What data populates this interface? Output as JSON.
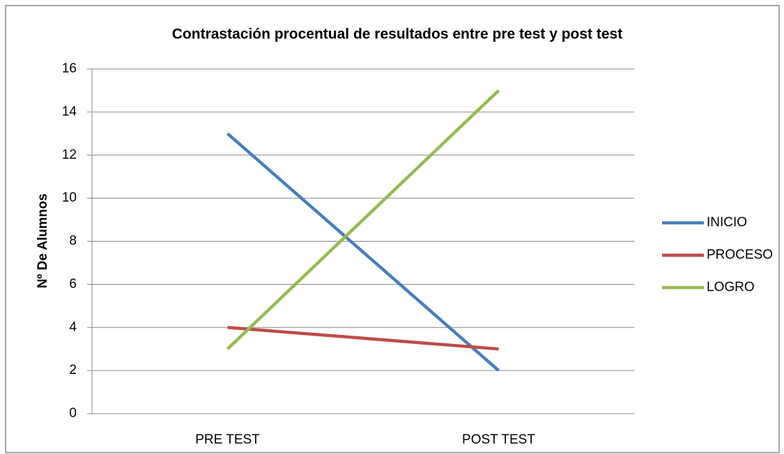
{
  "chart_data": {
    "type": "line",
    "title": "Contrastación procentual de resultados entre pre test y post test",
    "y_label": "Nº De Alumnos",
    "categories": [
      "PRE TEST",
      "POST TEST"
    ],
    "series": [
      {
        "name": "INICIO",
        "color": "#4a7ebb",
        "values": [
          13,
          2
        ]
      },
      {
        "name": "PROCESO",
        "color": "#be4b48",
        "values": [
          4,
          3
        ]
      },
      {
        "name": "LOGRO",
        "color": "#98b954",
        "values": [
          3,
          15
        ]
      }
    ],
    "ylim": [
      0,
      16
    ],
    "yticks": [
      0,
      2,
      4,
      6,
      8,
      10,
      12,
      14,
      16
    ],
    "grid": true,
    "legend": "right"
  }
}
